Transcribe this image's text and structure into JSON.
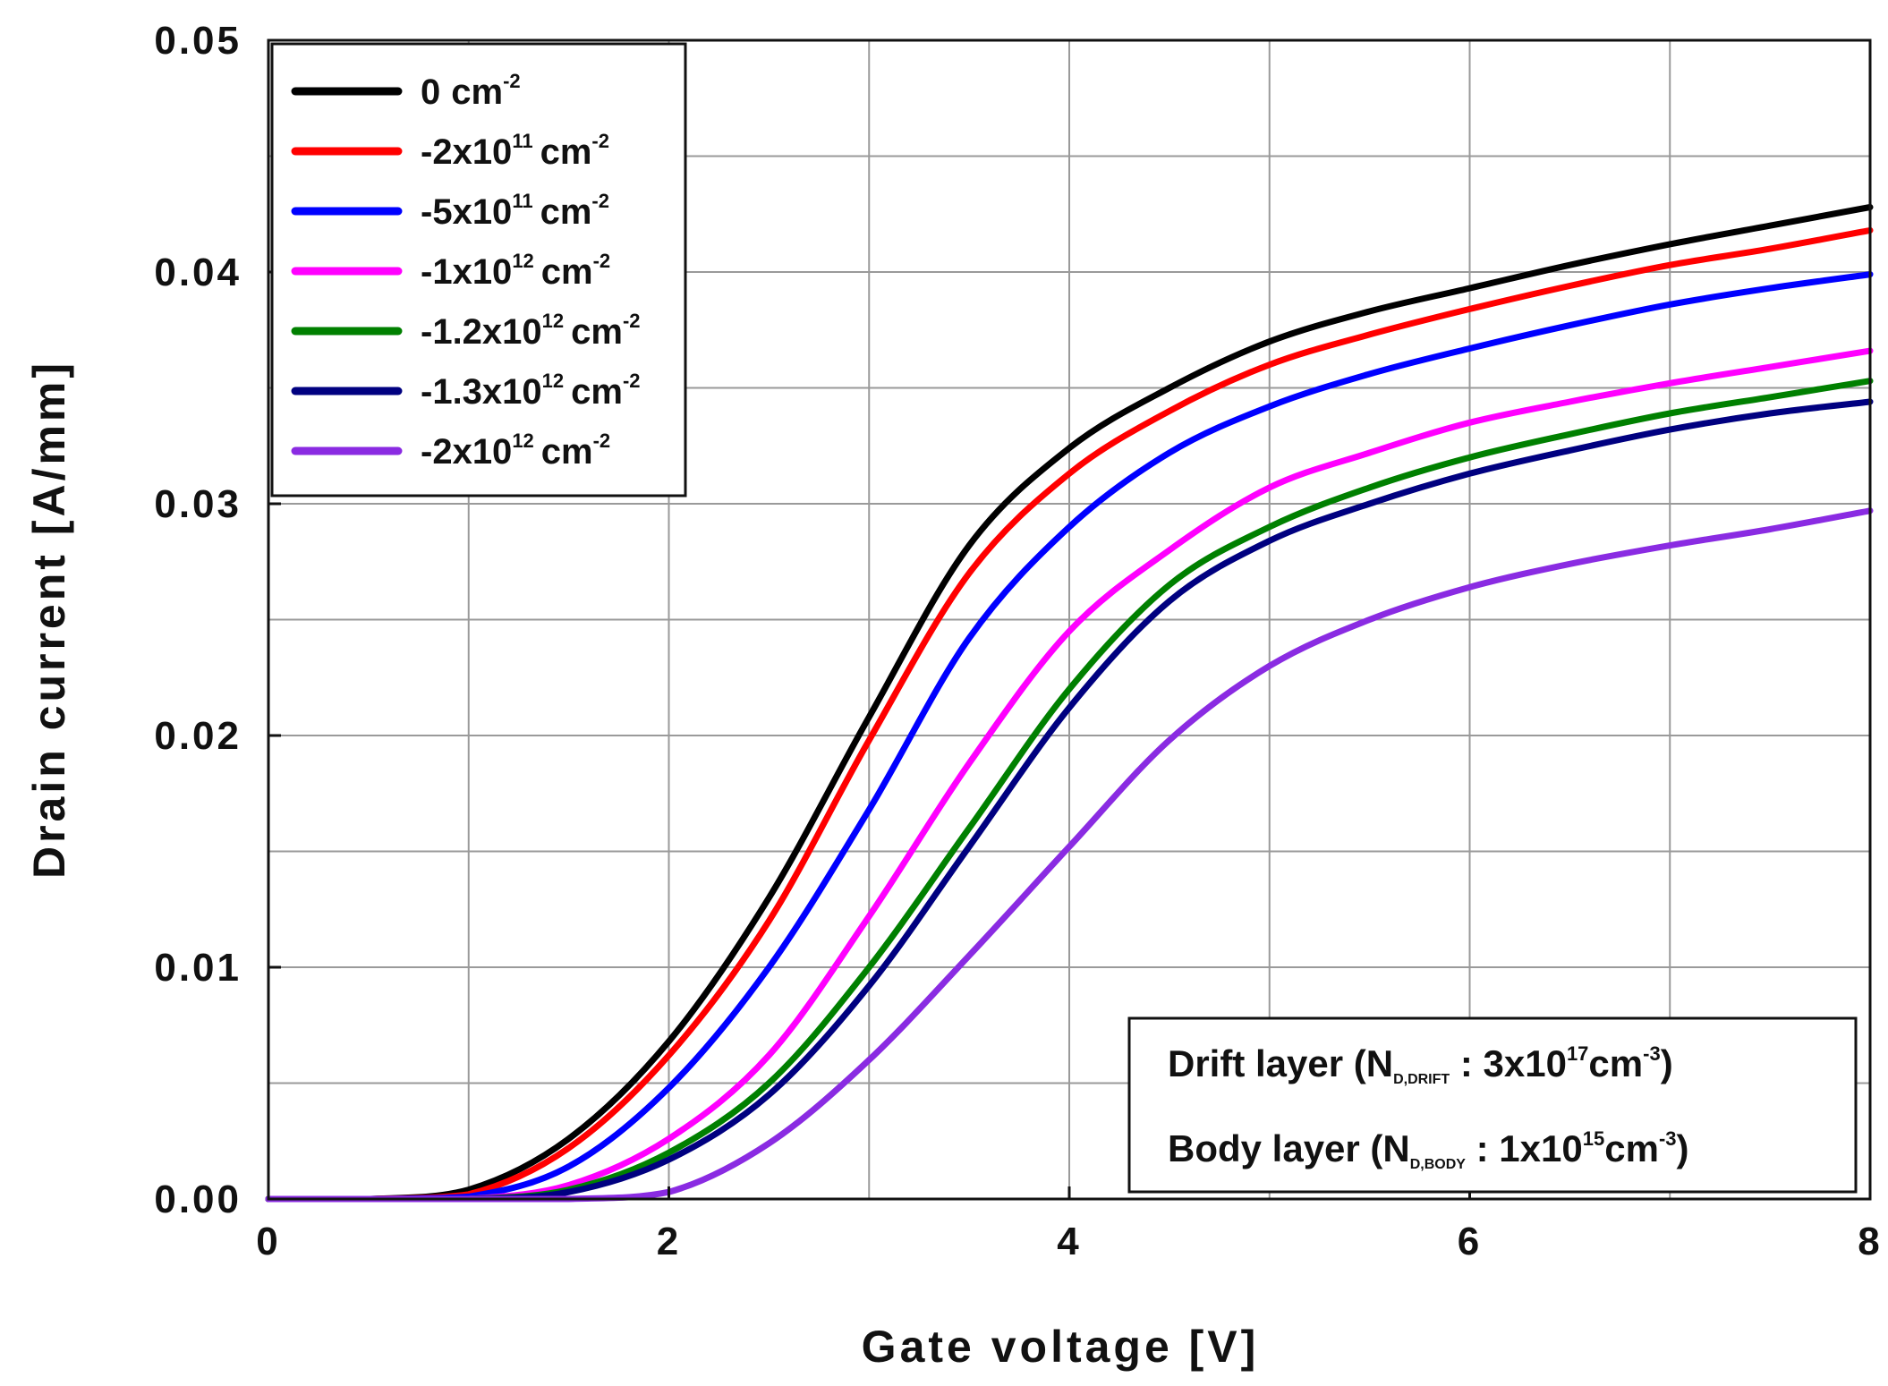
{
  "chart_data": {
    "type": "line",
    "title": "",
    "xlabel": "Gate voltage [V]",
    "ylabel": "Drain current [A/mm]",
    "xlim": [
      0,
      8
    ],
    "ylim": [
      0,
      0.05
    ],
    "xticks": [
      0,
      2,
      4,
      6,
      8
    ],
    "xtick_labels": [
      "0",
      "2",
      "4",
      "6",
      "8"
    ],
    "yticks": [
      0,
      0.01,
      0.02,
      0.03,
      0.04,
      0.05
    ],
    "ytick_labels": [
      "0.00",
      "0.01",
      "0.02",
      "0.03",
      "0.04",
      "0.05"
    ],
    "grid": true,
    "legend_position": "top-left",
    "x": [
      0,
      0.5,
      1.0,
      1.5,
      2.0,
      2.5,
      3.0,
      3.5,
      4.0,
      4.5,
      5.0,
      5.5,
      6.0,
      6.5,
      7.0,
      7.5,
      8.0
    ],
    "series": [
      {
        "name": "0",
        "name_exp": "-2",
        "color": "#000000",
        "values": [
          0,
          0,
          0.0004,
          0.0026,
          0.0068,
          0.013,
          0.0208,
          0.0282,
          0.0324,
          0.035,
          0.037,
          0.0383,
          0.0393,
          0.0403,
          0.0412,
          0.042,
          0.0428
        ]
      },
      {
        "name": "-2x10",
        "name_exp": "11",
        "color": "#ff0000",
        "values": [
          0,
          0,
          0.0002,
          0.0022,
          0.0062,
          0.012,
          0.0198,
          0.027,
          0.0313,
          0.034,
          0.036,
          0.0373,
          0.0384,
          0.0394,
          0.0403,
          0.041,
          0.0418
        ]
      },
      {
        "name": "-5x10",
        "name_exp": "11",
        "color": "#0000ff",
        "values": [
          0,
          0,
          0.0001,
          0.0014,
          0.0048,
          0.01,
          0.0168,
          0.0242,
          0.029,
          0.0322,
          0.0342,
          0.0356,
          0.0367,
          0.0377,
          0.0386,
          0.0393,
          0.0399
        ]
      },
      {
        "name": "-1x10",
        "name_exp": "12",
        "color": "#ff00ff",
        "values": [
          0,
          0,
          0,
          0.0006,
          0.0026,
          0.0062,
          0.0122,
          0.0188,
          0.0245,
          0.028,
          0.0307,
          0.0322,
          0.0335,
          0.0344,
          0.0352,
          0.0359,
          0.0366
        ]
      },
      {
        "name": "-1.2x10",
        "name_exp": "12",
        "color": "#008000",
        "values": [
          0,
          0,
          0,
          0.0004,
          0.002,
          0.005,
          0.01,
          0.016,
          0.022,
          0.0265,
          0.029,
          0.0307,
          0.032,
          0.033,
          0.0339,
          0.0346,
          0.0353
        ]
      },
      {
        "name": "-1.3x10",
        "name_exp": "12",
        "color": "#000080",
        "values": [
          0,
          0,
          0,
          0.0003,
          0.0017,
          0.0045,
          0.0092,
          0.0152,
          0.0212,
          0.0258,
          0.0284,
          0.03,
          0.0313,
          0.0323,
          0.0332,
          0.0339,
          0.0344
        ]
      },
      {
        "name": "-2x10",
        "name_exp": "12",
        "color": "#8a2be2",
        "values": [
          0,
          0,
          0,
          0,
          0.0003,
          0.0024,
          0.006,
          0.0105,
          0.0152,
          0.0198,
          0.023,
          0.025,
          0.0264,
          0.0274,
          0.0282,
          0.0289,
          0.0297
        ]
      }
    ],
    "unit_label": "cm",
    "annotation": {
      "line1": {
        "prefix": "Drift layer (N",
        "sub": "D,DRIFT",
        "mid": " : 3x10",
        "sup": "17",
        "unit": "cm",
        "unit_sup": "-3",
        "suffix": ")"
      },
      "line2": {
        "prefix": "Body layer (N",
        "sub": "D,BODY",
        "mid": " : 1x10",
        "sup": "15",
        "unit": "cm",
        "unit_sup": "-3",
        "suffix": ")"
      }
    }
  }
}
